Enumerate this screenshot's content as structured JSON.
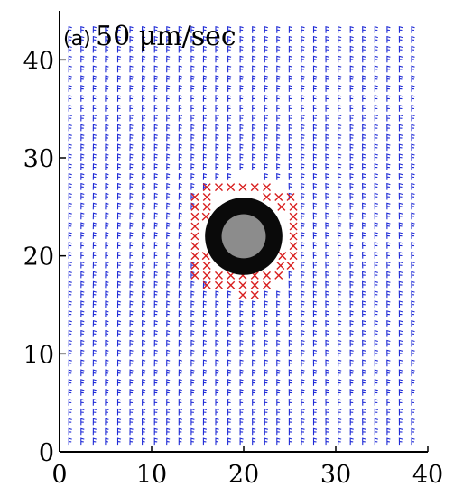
{
  "chart_data": {
    "type": "quiver",
    "panel_label": "(a)",
    "title": "50 μm/sec",
    "xlim": [
      0,
      40
    ],
    "ylim": [
      0,
      45
    ],
    "x_ticks": [
      "0",
      "10",
      "20",
      "30",
      "40"
    ],
    "y_ticks": [
      "0",
      "10",
      "20",
      "30",
      "40"
    ],
    "grid": false,
    "field": {
      "x_start": 1,
      "x_end": 39,
      "x_step": 1.33,
      "y_start": 1,
      "y_end": 43,
      "y_step": 1.0
    },
    "obstacle": {
      "center": [
        20,
        22
      ],
      "outer_radius": 4.2,
      "inner_radius": 2.4,
      "outer_color": "#0a0a0a",
      "inner_color": "#8c8c8c"
    },
    "crossed_points": [
      [
        16,
        27
      ],
      [
        17.3,
        27
      ],
      [
        18.6,
        27
      ],
      [
        19.9,
        27
      ],
      [
        21.2,
        27
      ],
      [
        22.5,
        27
      ],
      [
        14.7,
        26
      ],
      [
        16,
        26
      ],
      [
        22.5,
        26
      ],
      [
        23.8,
        26
      ],
      [
        25.1,
        26
      ],
      [
        14.7,
        25
      ],
      [
        16,
        25
      ],
      [
        24.1,
        25
      ],
      [
        25.4,
        25
      ],
      [
        14.7,
        24
      ],
      [
        15.9,
        24
      ],
      [
        25.4,
        24
      ],
      [
        14.7,
        23
      ],
      [
        25.4,
        23
      ],
      [
        14.7,
        22
      ],
      [
        25.4,
        22
      ],
      [
        14.7,
        21
      ],
      [
        25.4,
        21
      ],
      [
        14.7,
        20
      ],
      [
        15.9,
        20
      ],
      [
        24.2,
        20
      ],
      [
        25.4,
        20
      ],
      [
        14.7,
        19
      ],
      [
        16,
        19
      ],
      [
        24,
        19
      ],
      [
        25.1,
        19
      ],
      [
        14.7,
        18
      ],
      [
        16,
        18
      ],
      [
        17.3,
        18
      ],
      [
        18.6,
        18
      ],
      [
        19.9,
        18
      ],
      [
        21.2,
        18
      ],
      [
        22.5,
        18
      ],
      [
        23.8,
        18
      ],
      [
        16,
        17
      ],
      [
        17.3,
        17
      ],
      [
        18.6,
        17
      ],
      [
        19.9,
        17
      ],
      [
        21.2,
        17
      ],
      [
        22.5,
        17
      ],
      [
        19.9,
        16
      ],
      [
        21.2,
        16
      ]
    ],
    "colors": {
      "arrows": "#1f2bd6",
      "crosses": "#d81f1f"
    }
  }
}
